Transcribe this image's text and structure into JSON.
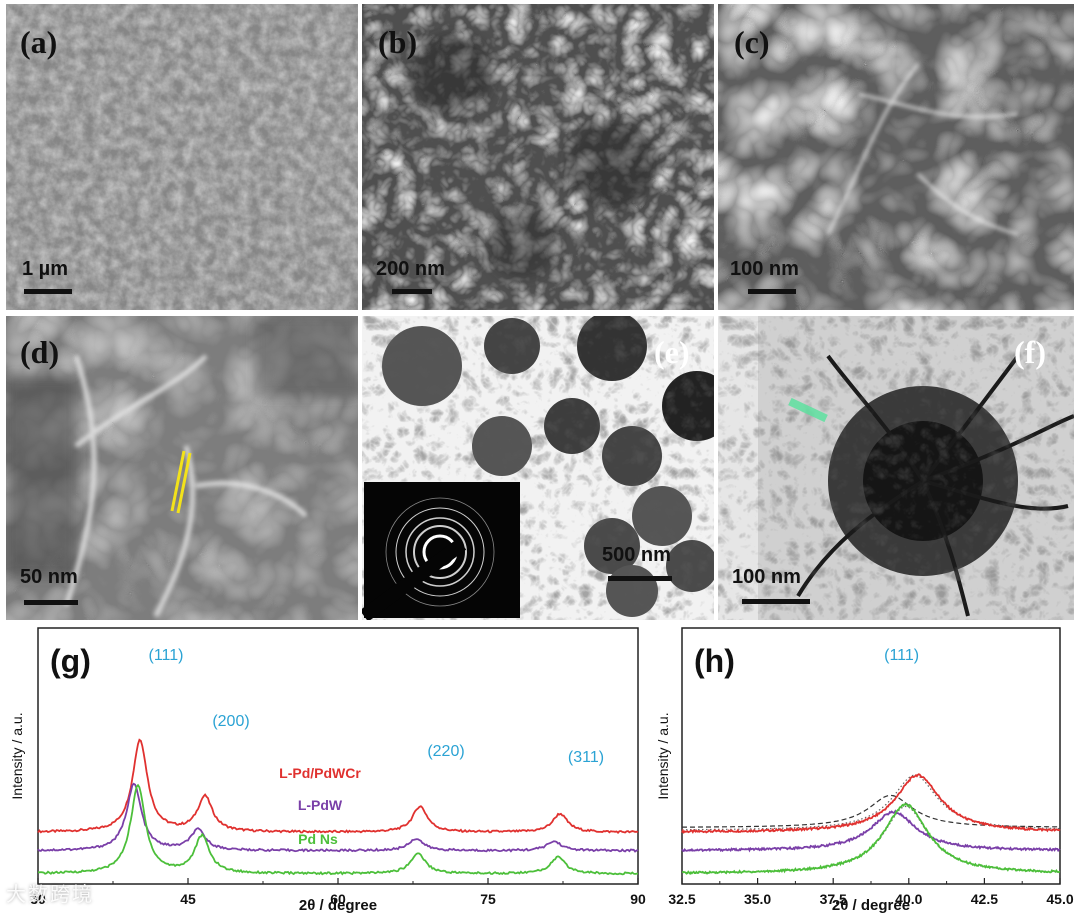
{
  "panels": {
    "a": {
      "label": "(a)",
      "scale": "1 µm"
    },
    "b": {
      "label": "(b)",
      "scale": "200 nm"
    },
    "c": {
      "label": "(c)",
      "scale": "100 nm"
    },
    "d": {
      "label": "(d)",
      "scale": "50 nm"
    },
    "e": {
      "label": "(e)",
      "scale": "500 nm"
    },
    "f": {
      "label": "(f)",
      "scale": "100 nm"
    }
  },
  "watermark": "大数跨境",
  "chart_data": [
    {
      "id": "g",
      "type": "line",
      "label": "(g)",
      "xlabel": "2θ / degree",
      "ylabel": "Intensity / a.u.",
      "xlim": [
        30,
        90
      ],
      "xticks": [
        30,
        45,
        60,
        75,
        90
      ],
      "peak_labels": [
        {
          "text": "(111)",
          "x": 40.0
        },
        {
          "text": "(200)",
          "x": 46.5
        },
        {
          "text": "(220)",
          "x": 68.0
        },
        {
          "text": "(311)",
          "x": 82.0
        }
      ],
      "series": [
        {
          "name": "L-Pd/PdWCr",
          "color": "#e0312f",
          "offset": 0.45,
          "peaks": [
            [
              40.2,
              1.0
            ],
            [
              46.7,
              0.38
            ],
            [
              68.2,
              0.28
            ],
            [
              82.2,
              0.2
            ]
          ]
        },
        {
          "name": "L-PdW",
          "color": "#7a3fa8",
          "offset": 0.25,
          "peaks": [
            [
              39.6,
              0.72
            ],
            [
              46.0,
              0.22
            ],
            [
              67.8,
              0.13
            ],
            [
              81.6,
              0.1
            ]
          ]
        },
        {
          "name": "Pd Ns",
          "color": "#4cbf3a",
          "offset": 0.0,
          "peaks": [
            [
              40.0,
              0.95
            ],
            [
              46.4,
              0.4
            ],
            [
              68.0,
              0.22
            ],
            [
              82.0,
              0.18
            ]
          ]
        }
      ],
      "grid": false
    },
    {
      "id": "h",
      "type": "line",
      "label": "(h)",
      "xlabel": "2θ / degree",
      "ylabel": "Intensity / a.u.",
      "xlim": [
        32.5,
        45.0
      ],
      "xticks": [
        "32.5",
        "35.0",
        "37.5",
        "40.0",
        "42.5",
        "45.0"
      ],
      "peak_labels": [
        {
          "text": "(111)",
          "x": 39.3
        }
      ],
      "series": [
        {
          "name": "L-Pd/PdWCr",
          "color": "#e0312f",
          "offset": 0.45,
          "peaks": [
            [
              40.3,
              0.62
            ]
          ]
        },
        {
          "name": "L-PdW",
          "color": "#7a3fa8",
          "offset": 0.25,
          "peaks": [
            [
              39.5,
              0.42
            ]
          ]
        },
        {
          "name": "Pd Ns",
          "color": "#4cbf3a",
          "offset": 0.0,
          "peaks": [
            [
              39.9,
              0.75
            ]
          ]
        }
      ],
      "fits": [
        {
          "style": "dotted",
          "color": "#666666",
          "peak": [
            40.2,
            0.6
          ],
          "offset": 0.47
        },
        {
          "style": "dashed",
          "color": "#333333",
          "peak": [
            39.4,
            0.35
          ],
          "offset": 0.5
        },
        {
          "style": "dotted",
          "color": "#666666",
          "peak": [
            39.9,
            0.73
          ],
          "offset": 0.0
        }
      ],
      "grid": false
    }
  ]
}
